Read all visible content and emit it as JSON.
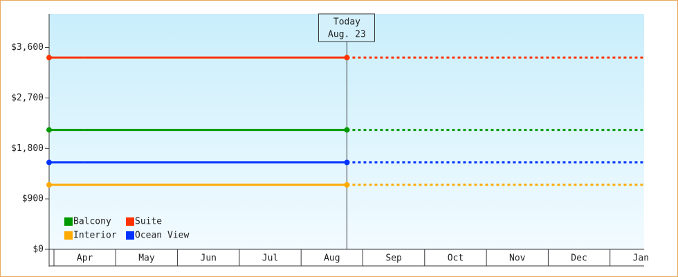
{
  "chart_data": {
    "type": "line",
    "categories": [
      "Apr",
      "May",
      "Jun",
      "Jul",
      "Aug",
      "Sep",
      "Oct",
      "Nov",
      "Dec",
      "Jan"
    ],
    "series": [
      {
        "name": "Balcony",
        "color": "#009900",
        "values": [
          2130,
          2130,
          2130,
          2130,
          2130,
          2130,
          2130,
          2130,
          2130,
          2130
        ]
      },
      {
        "name": "Suite",
        "color": "#ff3300",
        "values": [
          3420,
          3420,
          3420,
          3420,
          3420,
          3420,
          3420,
          3420,
          3420,
          3420
        ]
      },
      {
        "name": "Interior",
        "color": "#ffaa00",
        "values": [
          1150,
          1150,
          1150,
          1150,
          1150,
          1150,
          1150,
          1150,
          1150,
          1150
        ]
      },
      {
        "name": "Ocean View",
        "color": "#0033ff",
        "values": [
          1550,
          1550,
          1550,
          1550,
          1550,
          1550,
          1550,
          1550,
          1550,
          1550
        ]
      }
    ],
    "annotation": [
      "Today",
      "Aug. 23"
    ],
    "ylim": [
      0,
      4200
    ],
    "yticks": [
      {
        "value": 0,
        "label": "$0"
      },
      {
        "value": 900,
        "label": "$900"
      },
      {
        "value": 1800,
        "label": "$1,800"
      },
      {
        "value": 2700,
        "label": "$2,700"
      },
      {
        "value": 3600,
        "label": "$3,600"
      }
    ],
    "legend": "bottom-left"
  }
}
